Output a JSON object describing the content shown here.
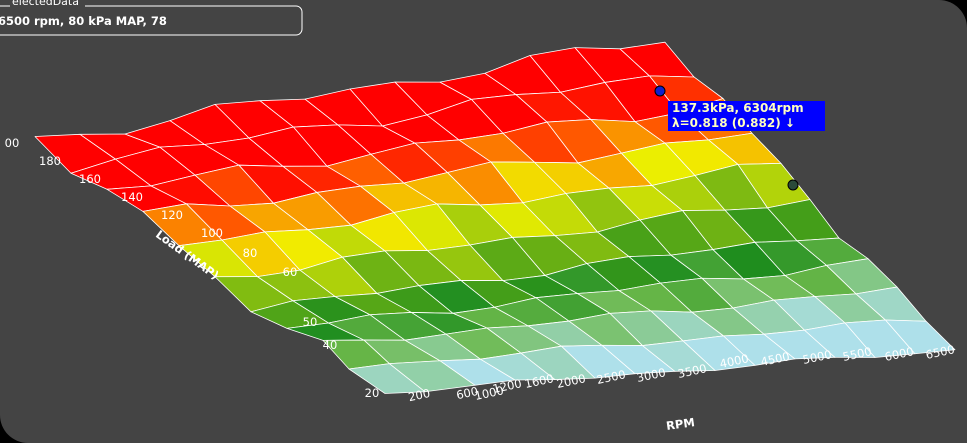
{
  "legend": {
    "title": "electedData",
    "text": "6500 rpm, 80 kPa MAP, 78"
  },
  "tooltip": {
    "line1": "137.3kPa, 6304rpm",
    "line2": "λ=0.818 (0.882) ↓"
  },
  "axes": {
    "load": {
      "title": "Load (MAP)",
      "ticks": [
        "20",
        "40",
        "50",
        "60",
        "80",
        "100",
        "120",
        "140",
        "160",
        "180",
        "00"
      ]
    },
    "rpm": {
      "title": "RPM",
      "ticks": [
        "200",
        "600",
        "1000",
        "1200",
        "1600",
        "2000",
        "2500",
        "3000",
        "3500",
        "4000",
        "4500",
        "5000",
        "5500",
        "6000",
        "6500"
      ]
    }
  }
}
